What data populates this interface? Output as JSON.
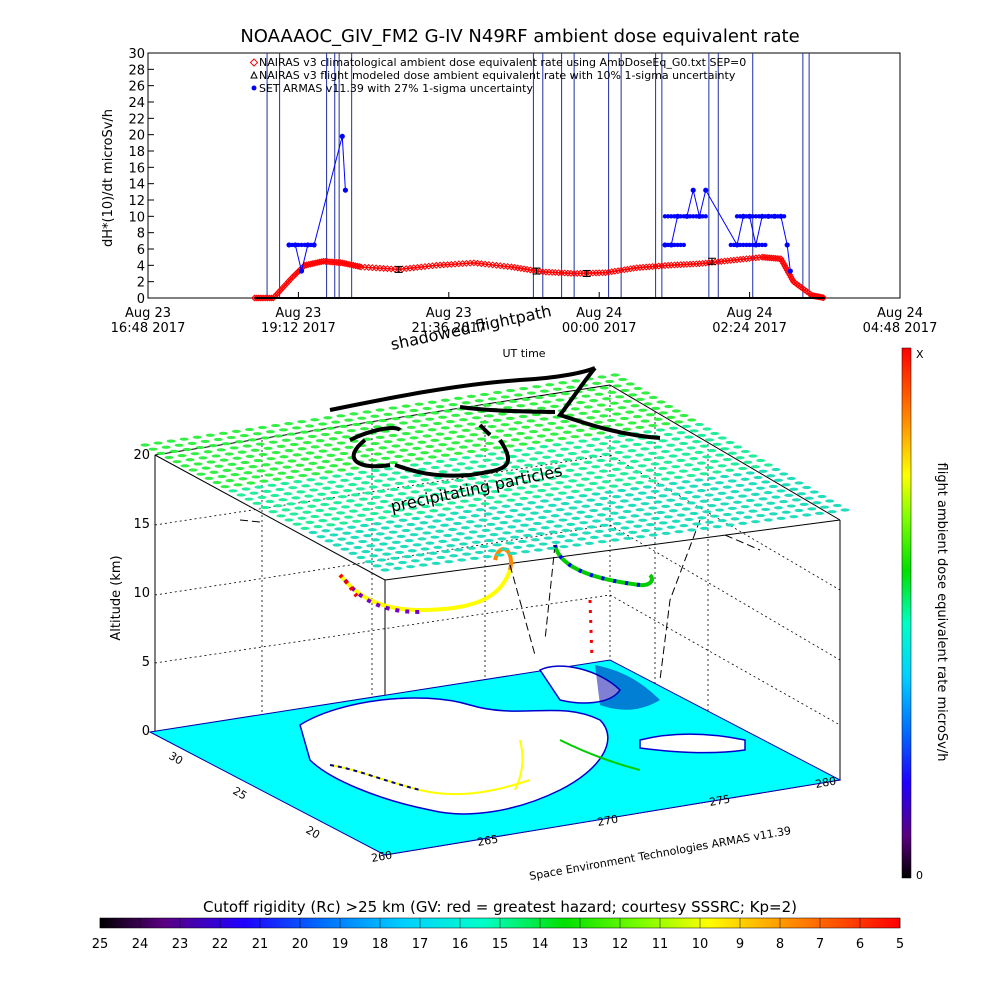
{
  "chart_data": [
    {
      "type": "line",
      "title": "NOAAAOC_GIV_FM2 G-IV    N49RF   ambient dose equivalent rate",
      "ylabel": "dH*(10)/dt microSv/h",
      "xlabel": "UT time",
      "ylim": [
        0,
        30
      ],
      "yticks": [
        "0",
        "2",
        "4",
        "6",
        "8",
        "10",
        "12",
        "14",
        "16",
        "18",
        "20",
        "22",
        "24",
        "26",
        "28",
        "30"
      ],
      "xticks": [
        {
          "l1": "Aug 23",
          "l2": "16:48 2017"
        },
        {
          "l1": "Aug 23",
          "l2": "19:12 2017"
        },
        {
          "l1": "Aug 23",
          "l2": "21:36 2017"
        },
        {
          "l1": "Aug 24",
          "l2": "00:00 2017"
        },
        {
          "l1": "Aug 24",
          "l2": "02:24 2017"
        },
        {
          "l1": "Aug 24",
          "l2": "04:48 2017"
        }
      ],
      "xlim_hours": [
        0,
        12
      ],
      "legend": [
        {
          "symbol": "diamond",
          "color": "#ff0000",
          "text": "NAIRAS v3 climatological ambient dose equivalent rate using AmbDoseEq_G0.txt SEP=0"
        },
        {
          "symbol": "triangle",
          "color": "#000000",
          "text": "NAIRAS v3 flight modeled dose ambient equivalent rate with 10% 1-sigma uncertainty"
        },
        {
          "symbol": "dot",
          "color": "#0000ff",
          "text": "SET ARMAS v11.39 with 27% 1-sigma uncertainty"
        }
      ],
      "series": [
        {
          "name": "NAIRAS v3 climatological ambient dose equivalent rate using AmbDoseEq_G0.txt SEP=0",
          "color": "#ff0000",
          "x": [
            1.7,
            2.0,
            2.3,
            2.5,
            2.8,
            3.1,
            3.4,
            4.0,
            4.6,
            5.2,
            5.8,
            6.3,
            6.8,
            7.3,
            7.8,
            8.3,
            8.8,
            9.3,
            9.8,
            10.1,
            10.3,
            10.6,
            10.8
          ],
          "y": [
            0,
            0,
            2.5,
            4.0,
            4.5,
            4.3,
            3.8,
            3.5,
            4.0,
            4.3,
            3.8,
            3.2,
            3.0,
            3.1,
            3.7,
            4.0,
            4.2,
            4.6,
            5.0,
            4.8,
            2.0,
            0.3,
            0
          ]
        },
        {
          "name": "NAIRAS v3 flight modeled dose ambient equivalent rate with 10% 1-sigma uncertainty",
          "color": "#000000",
          "x": [
            1.7,
            10.8
          ],
          "y": [
            0,
            0
          ]
        },
        {
          "name": "SET ARMAS v11.39 with 27% 1-sigma uncertainty",
          "color": "#0000ff",
          "x": [
            2.25,
            2.35,
            2.45,
            2.55,
            2.65,
            3.1,
            3.15,
            8.25,
            8.35,
            8.45,
            8.6,
            8.7,
            8.8,
            8.9,
            9.4,
            9.5,
            9.6,
            9.7,
            9.8,
            9.9,
            10.0,
            10.1,
            10.2,
            10.25
          ],
          "y": [
            6.5,
            6.5,
            3.3,
            6.5,
            6.5,
            19.8,
            13.2,
            6.5,
            6.5,
            10,
            10,
            13.2,
            10,
            13.2,
            6.5,
            10,
            10,
            6.5,
            10,
            10,
            10,
            10,
            6.5,
            3.3
          ]
        }
      ]
    },
    {
      "type": "heatmap",
      "annotations": [
        "shadowed flightpath",
        "precipitating particles",
        "Space Environment Technologies ARMAS v11.39"
      ],
      "zlabel": "Altitude (km)",
      "zticks": [
        "0",
        "5",
        "10",
        "15",
        "20"
      ],
      "lat_ticks": [
        "30",
        "25",
        "20"
      ],
      "lon_ticks": [
        "260",
        "265",
        "270",
        "275",
        "280"
      ],
      "colorbar": {
        "label": "flight ambient dose equivalent rate microSv/h",
        "top": "X",
        "bottom": "0"
      },
      "cutoff_bar": {
        "title": "Cutoff rigidity (Rc) >25 km (GV: red = greatest hazard; courtesy SSSRC; Kp=2)",
        "ticks": [
          "25",
          "24",
          "23",
          "22",
          "21",
          "20",
          "19",
          "18",
          "17",
          "16",
          "15",
          "14",
          "13",
          "12",
          "11",
          "10",
          "9",
          "8",
          "7",
          "6",
          "5"
        ]
      }
    }
  ],
  "colors": {
    "blue": "#0000ff",
    "red": "#ff0000",
    "cyan": "#00ffff",
    "green": "#00e600",
    "black": "#000000"
  }
}
